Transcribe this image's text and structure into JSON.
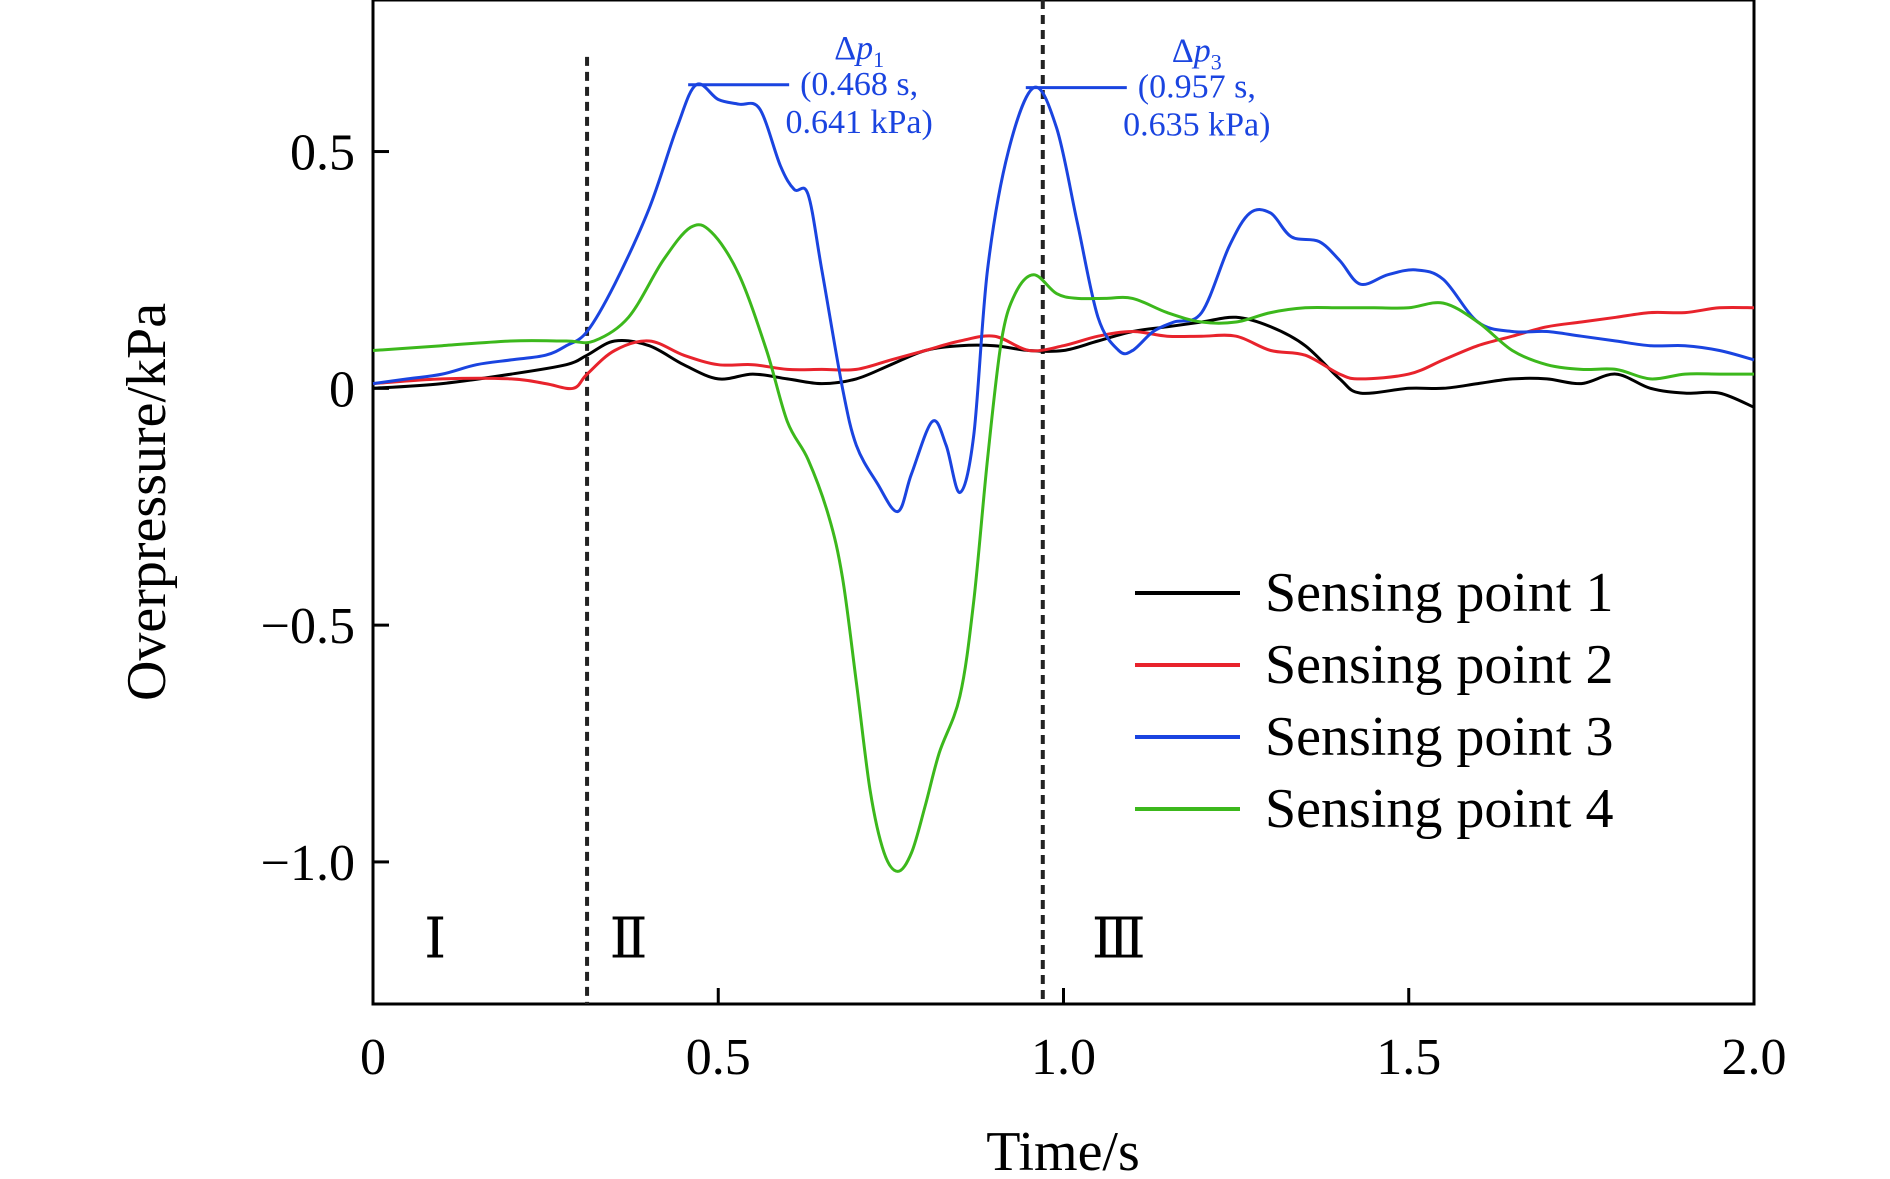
{
  "chart_data": {
    "type": "line",
    "xlabel": "Time/s",
    "ylabel": "Overpressure/kPa",
    "xlim": [
      0,
      2.0
    ],
    "ylim": [
      -1.3,
      0.82
    ],
    "x_ticks": [
      {
        "value": 0,
        "label": "0"
      },
      {
        "value": 0.5,
        "label": "0.5"
      },
      {
        "value": 1.0,
        "label": "1.0"
      },
      {
        "value": 1.5,
        "label": "1.5"
      },
      {
        "value": 2.0,
        "label": "2.0"
      }
    ],
    "y_ticks": [
      {
        "value": 0.5,
        "label": "0.5"
      },
      {
        "value": 0,
        "label": "0"
      },
      {
        "value": -0.5,
        "label": "−0.5"
      },
      {
        "value": -1.0,
        "label": "−1.0"
      }
    ],
    "grid": false,
    "legend_position": "lower-right",
    "series": [
      {
        "name": "Sensing point 1",
        "color": "#000000",
        "points": [
          [
            0,
            0
          ],
          [
            0.1,
            0.01
          ],
          [
            0.2,
            0.03
          ],
          [
            0.28,
            0.05
          ],
          [
            0.31,
            0.07
          ],
          [
            0.35,
            0.1
          ],
          [
            0.4,
            0.09
          ],
          [
            0.45,
            0.05
          ],
          [
            0.5,
            0.02
          ],
          [
            0.55,
            0.03
          ],
          [
            0.6,
            0.02
          ],
          [
            0.65,
            0.01
          ],
          [
            0.7,
            0.02
          ],
          [
            0.75,
            0.05
          ],
          [
            0.8,
            0.08
          ],
          [
            0.85,
            0.09
          ],
          [
            0.9,
            0.09
          ],
          [
            0.95,
            0.08
          ],
          [
            1.0,
            0.08
          ],
          [
            1.05,
            0.1
          ],
          [
            1.1,
            0.12
          ],
          [
            1.15,
            0.13
          ],
          [
            1.2,
            0.14
          ],
          [
            1.25,
            0.15
          ],
          [
            1.3,
            0.13
          ],
          [
            1.35,
            0.09
          ],
          [
            1.4,
            0.02
          ],
          [
            1.43,
            -0.01
          ],
          [
            1.5,
            0.0
          ],
          [
            1.55,
            0.0
          ],
          [
            1.6,
            0.01
          ],
          [
            1.65,
            0.02
          ],
          [
            1.7,
            0.02
          ],
          [
            1.75,
            0.01
          ],
          [
            1.8,
            0.03
          ],
          [
            1.85,
            0.0
          ],
          [
            1.9,
            -0.01
          ],
          [
            1.95,
            -0.01
          ],
          [
            2.0,
            -0.04
          ]
        ]
      },
      {
        "name": "Sensing point 2",
        "color": "#e8232c",
        "points": [
          [
            0,
            0.01
          ],
          [
            0.1,
            0.02
          ],
          [
            0.2,
            0.02
          ],
          [
            0.25,
            0.01
          ],
          [
            0.29,
            0.0
          ],
          [
            0.31,
            0.03
          ],
          [
            0.35,
            0.08
          ],
          [
            0.4,
            0.1
          ],
          [
            0.45,
            0.07
          ],
          [
            0.5,
            0.05
          ],
          [
            0.55,
            0.05
          ],
          [
            0.6,
            0.04
          ],
          [
            0.65,
            0.04
          ],
          [
            0.7,
            0.04
          ],
          [
            0.75,
            0.06
          ],
          [
            0.8,
            0.08
          ],
          [
            0.85,
            0.1
          ],
          [
            0.9,
            0.11
          ],
          [
            0.95,
            0.08
          ],
          [
            1.0,
            0.09
          ],
          [
            1.05,
            0.11
          ],
          [
            1.1,
            0.12
          ],
          [
            1.15,
            0.11
          ],
          [
            1.2,
            0.11
          ],
          [
            1.25,
            0.11
          ],
          [
            1.3,
            0.08
          ],
          [
            1.35,
            0.07
          ],
          [
            1.4,
            0.03
          ],
          [
            1.43,
            0.02
          ],
          [
            1.5,
            0.03
          ],
          [
            1.55,
            0.06
          ],
          [
            1.6,
            0.09
          ],
          [
            1.65,
            0.11
          ],
          [
            1.7,
            0.13
          ],
          [
            1.75,
            0.14
          ],
          [
            1.8,
            0.15
          ],
          [
            1.85,
            0.16
          ],
          [
            1.9,
            0.16
          ],
          [
            1.95,
            0.17
          ],
          [
            2.0,
            0.17
          ]
        ]
      },
      {
        "name": "Sensing point 3",
        "color": "#1a44e0",
        "points": [
          [
            0,
            0.01
          ],
          [
            0.05,
            0.02
          ],
          [
            0.1,
            0.03
          ],
          [
            0.15,
            0.05
          ],
          [
            0.2,
            0.06
          ],
          [
            0.25,
            0.07
          ],
          [
            0.28,
            0.09
          ],
          [
            0.31,
            0.12
          ],
          [
            0.35,
            0.22
          ],
          [
            0.4,
            0.38
          ],
          [
            0.44,
            0.55
          ],
          [
            0.468,
            0.641
          ],
          [
            0.5,
            0.61
          ],
          [
            0.53,
            0.6
          ],
          [
            0.56,
            0.59
          ],
          [
            0.59,
            0.47
          ],
          [
            0.61,
            0.42
          ],
          [
            0.63,
            0.41
          ],
          [
            0.65,
            0.25
          ],
          [
            0.68,
            0.0
          ],
          [
            0.7,
            -0.12
          ],
          [
            0.73,
            -0.2
          ],
          [
            0.76,
            -0.26
          ],
          [
            0.78,
            -0.18
          ],
          [
            0.81,
            -0.07
          ],
          [
            0.83,
            -0.12
          ],
          [
            0.85,
            -0.22
          ],
          [
            0.87,
            -0.1
          ],
          [
            0.89,
            0.25
          ],
          [
            0.92,
            0.5
          ],
          [
            0.957,
            0.635
          ],
          [
            0.99,
            0.55
          ],
          [
            1.02,
            0.35
          ],
          [
            1.05,
            0.15
          ],
          [
            1.08,
            0.08
          ],
          [
            1.1,
            0.08
          ],
          [
            1.13,
            0.12
          ],
          [
            1.16,
            0.14
          ],
          [
            1.2,
            0.16
          ],
          [
            1.24,
            0.3
          ],
          [
            1.27,
            0.37
          ],
          [
            1.3,
            0.37
          ],
          [
            1.33,
            0.32
          ],
          [
            1.37,
            0.31
          ],
          [
            1.4,
            0.27
          ],
          [
            1.43,
            0.22
          ],
          [
            1.47,
            0.24
          ],
          [
            1.51,
            0.25
          ],
          [
            1.55,
            0.23
          ],
          [
            1.6,
            0.14
          ],
          [
            1.65,
            0.12
          ],
          [
            1.7,
            0.12
          ],
          [
            1.75,
            0.11
          ],
          [
            1.8,
            0.1
          ],
          [
            1.85,
            0.09
          ],
          [
            1.9,
            0.09
          ],
          [
            1.95,
            0.08
          ],
          [
            2.0,
            0.06
          ]
        ]
      },
      {
        "name": "Sensing point 4",
        "color": "#3cb81c",
        "points": [
          [
            0,
            0.08
          ],
          [
            0.1,
            0.09
          ],
          [
            0.2,
            0.1
          ],
          [
            0.28,
            0.1
          ],
          [
            0.32,
            0.1
          ],
          [
            0.37,
            0.15
          ],
          [
            0.42,
            0.27
          ],
          [
            0.46,
            0.34
          ],
          [
            0.49,
            0.33
          ],
          [
            0.53,
            0.24
          ],
          [
            0.57,
            0.08
          ],
          [
            0.6,
            -0.07
          ],
          [
            0.63,
            -0.15
          ],
          [
            0.66,
            -0.27
          ],
          [
            0.68,
            -0.4
          ],
          [
            0.7,
            -0.62
          ],
          [
            0.72,
            -0.85
          ],
          [
            0.74,
            -0.98
          ],
          [
            0.76,
            -1.02
          ],
          [
            0.78,
            -0.98
          ],
          [
            0.8,
            -0.88
          ],
          [
            0.82,
            -0.77
          ],
          [
            0.85,
            -0.65
          ],
          [
            0.87,
            -0.45
          ],
          [
            0.89,
            -0.15
          ],
          [
            0.91,
            0.1
          ],
          [
            0.93,
            0.2
          ],
          [
            0.957,
            0.24
          ],
          [
            0.99,
            0.2
          ],
          [
            1.02,
            0.19
          ],
          [
            1.06,
            0.19
          ],
          [
            1.1,
            0.19
          ],
          [
            1.15,
            0.16
          ],
          [
            1.2,
            0.14
          ],
          [
            1.25,
            0.14
          ],
          [
            1.3,
            0.16
          ],
          [
            1.35,
            0.17
          ],
          [
            1.4,
            0.17
          ],
          [
            1.45,
            0.17
          ],
          [
            1.5,
            0.17
          ],
          [
            1.55,
            0.18
          ],
          [
            1.6,
            0.14
          ],
          [
            1.65,
            0.08
          ],
          [
            1.7,
            0.05
          ],
          [
            1.75,
            0.04
          ],
          [
            1.8,
            0.04
          ],
          [
            1.85,
            0.02
          ],
          [
            1.9,
            0.03
          ],
          [
            1.95,
            0.03
          ],
          [
            2.0,
            0.03
          ]
        ]
      }
    ],
    "vertical_lines": [
      {
        "x": 0.31,
        "style": "dashed"
      },
      {
        "x": 0.97,
        "style": "dashed"
      }
    ],
    "region_labels": [
      {
        "label": "Ⅰ",
        "x": 0.09,
        "y": -1.16
      },
      {
        "label": "Ⅱ",
        "x": 0.37,
        "y": -1.16
      },
      {
        "label": "Ⅲ",
        "x": 1.08,
        "y": -1.16
      }
    ],
    "annotations": [
      {
        "symbol": "Δp",
        "subscript": "1",
        "line1": "(0.468 s,",
        "line2": "0.641 kPa)",
        "x": 0.468,
        "y": 0.641,
        "color": "#1a44e0"
      },
      {
        "symbol": "Δp",
        "subscript": "3",
        "line1": "(0.957 s,",
        "line2": "0.635 kPa)",
        "x": 0.957,
        "y": 0.635,
        "color": "#1a44e0"
      }
    ]
  }
}
